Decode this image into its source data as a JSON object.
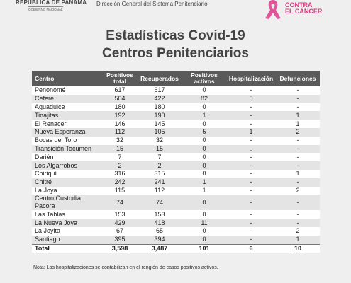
{
  "header": {
    "country": "REPÚBLICA DE PANAMÁ",
    "government": "GOBIERNO NACIONAL",
    "agency": "Dirección General del Sistema Penitenciario",
    "campaign_line1": "CONTRA",
    "campaign_line2": "EL CÁNCER"
  },
  "title": {
    "line1": "Estadísticas Covid-19",
    "line2": "Centros Penitenciarios"
  },
  "table": {
    "columns": [
      "Centro",
      "Positivos total",
      "Recuperados",
      "Positivos activos",
      "Hospitalización",
      "Defunciones"
    ],
    "rows": [
      [
        "Penonomé",
        "617",
        "617",
        "0",
        "-",
        "-"
      ],
      [
        "Cefere",
        "504",
        "422",
        "82",
        "5",
        "-"
      ],
      [
        "Aguadulce",
        "180",
        "180",
        "0",
        "-",
        "-"
      ],
      [
        "Tinajitas",
        "192",
        "190",
        "1",
        "-",
        "1"
      ],
      [
        "El Renacer",
        "146",
        "145",
        "0",
        "-",
        "1"
      ],
      [
        "Nueva Esperanza",
        "112",
        "105",
        "5",
        "1",
        "2"
      ],
      [
        "Bocas del Toro",
        "32",
        "32",
        "0",
        "-",
        "-"
      ],
      [
        "Transición Tocumen",
        "15",
        "15",
        "0",
        ".",
        "-"
      ],
      [
        "Darién",
        "7",
        "7",
        "0",
        "-",
        "-"
      ],
      [
        "Los Algarrobos",
        "2",
        "2",
        "0",
        "-",
        "-"
      ],
      [
        "Chiriquí",
        "316",
        "315",
        "0",
        "-",
        "1"
      ],
      [
        "Chitré",
        "242",
        "241",
        "1",
        "-",
        "-"
      ],
      [
        "La Joya",
        "115",
        "112",
        "1",
        "-",
        "2"
      ],
      [
        "Centro Custodia Pacora",
        "74",
        "74",
        "0",
        "-",
        "-"
      ],
      [
        "Las Tablas",
        "153",
        "153",
        "0",
        "-",
        "-"
      ],
      [
        "La Nueva Joya",
        "429",
        "418",
        "11",
        "-",
        "-"
      ],
      [
        "La Joyita",
        "67",
        "65",
        "0",
        "-",
        "2"
      ],
      [
        "Santiago",
        "395",
        "394",
        "0",
        "-",
        "1"
      ]
    ],
    "total": [
      "Total",
      "3,598",
      "3,487",
      "101",
      "6",
      "10"
    ]
  },
  "note": "Nota:  Las hospitalizaciones se contabilizan en el renglón de casos positivos activos."
}
